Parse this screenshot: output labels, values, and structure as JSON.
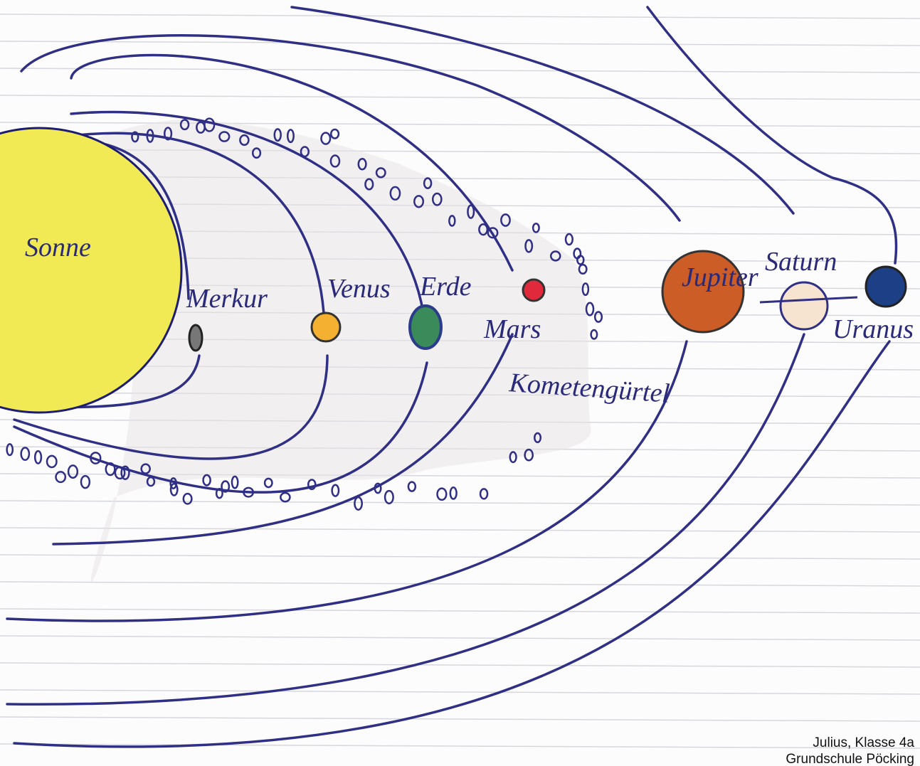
{
  "bodies": [
    "Sonne",
    "Merkur",
    "Venus",
    "Erde",
    "Mars",
    "Jupiter",
    "Saturn",
    "Uranus"
  ],
  "belt_label": "Kometengürtel",
  "caption": [
    "Julius, Klasse 4a",
    "Grundschule Pöcking"
  ]
}
